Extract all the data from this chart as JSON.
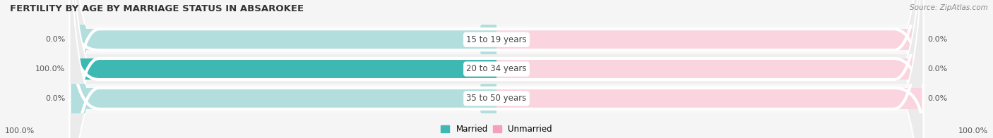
{
  "title": "FERTILITY BY AGE BY MARRIAGE STATUS IN ABSAROKEE",
  "source": "Source: ZipAtlas.com",
  "categories": [
    "15 to 19 years",
    "20 to 34 years",
    "35 to 50 years"
  ],
  "married_values": [
    0.0,
    100.0,
    0.0
  ],
  "unmarried_values": [
    0.0,
    0.0,
    0.0
  ],
  "married_color": "#3db8b2",
  "married_light": "#b2dedd",
  "unmarried_color": "#f4a0b8",
  "unmarried_light": "#fad4df",
  "bar_bg": "#ebebeb",
  "row_bg_odd": "#f7f7f7",
  "row_bg_even": "#efefef",
  "title_color": "#333333",
  "source_color": "#888888",
  "label_color": "#444444",
  "value_color": "#555555",
  "legend_married": "Married",
  "legend_unmarried": "Unmarried",
  "figsize": [
    14.06,
    1.96
  ],
  "dpi": 100
}
